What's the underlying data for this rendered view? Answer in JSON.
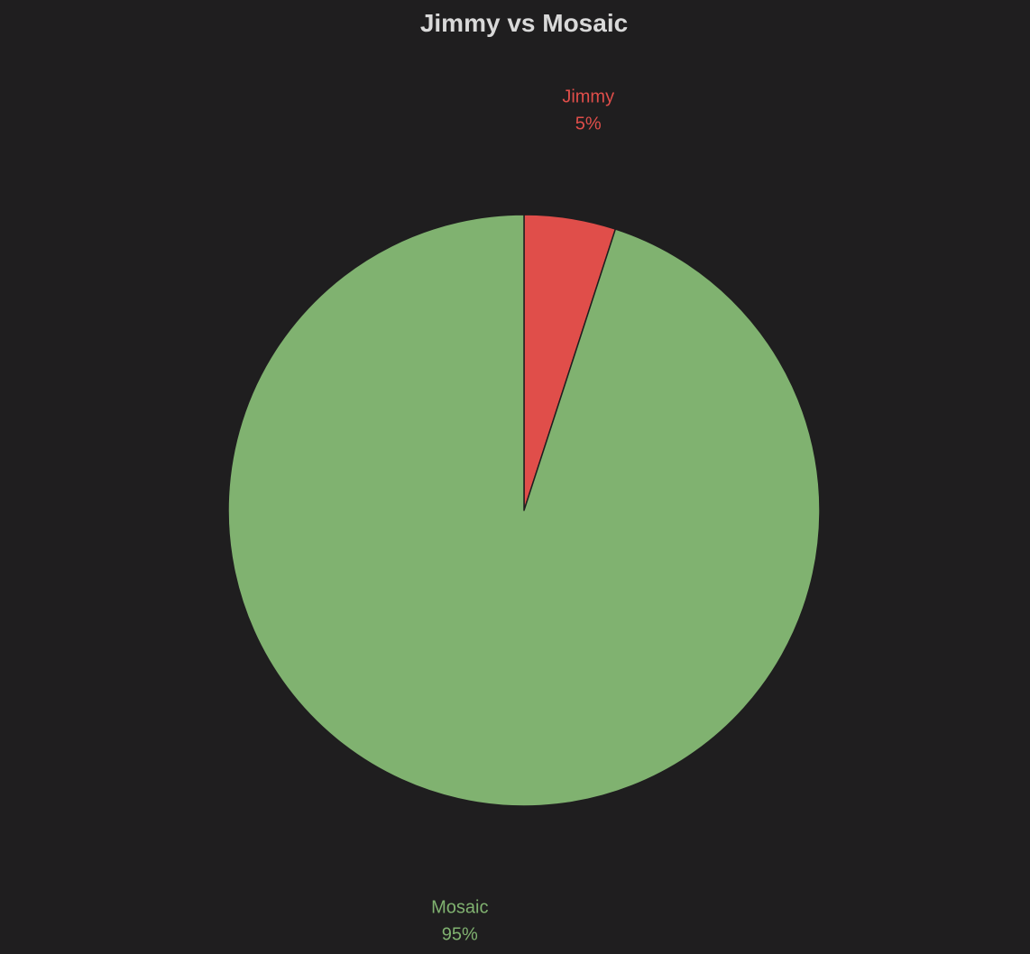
{
  "chart_data": {
    "type": "pie",
    "title": "Jimmy vs Mosaic",
    "categories": [
      "Jimmy",
      "Mosaic"
    ],
    "values": [
      5,
      95
    ],
    "labels": [
      "5%",
      "95%"
    ],
    "colors": [
      "#e04e4a",
      "#80b270"
    ],
    "slice_border_color": "#1f1e1f",
    "start_angle": "top (12 o'clock)",
    "direction": "clockwise",
    "legend": "none (labels placed outside slices)"
  },
  "style": {
    "background": "#1f1e1f",
    "title_color": "#d9d9d9"
  }
}
